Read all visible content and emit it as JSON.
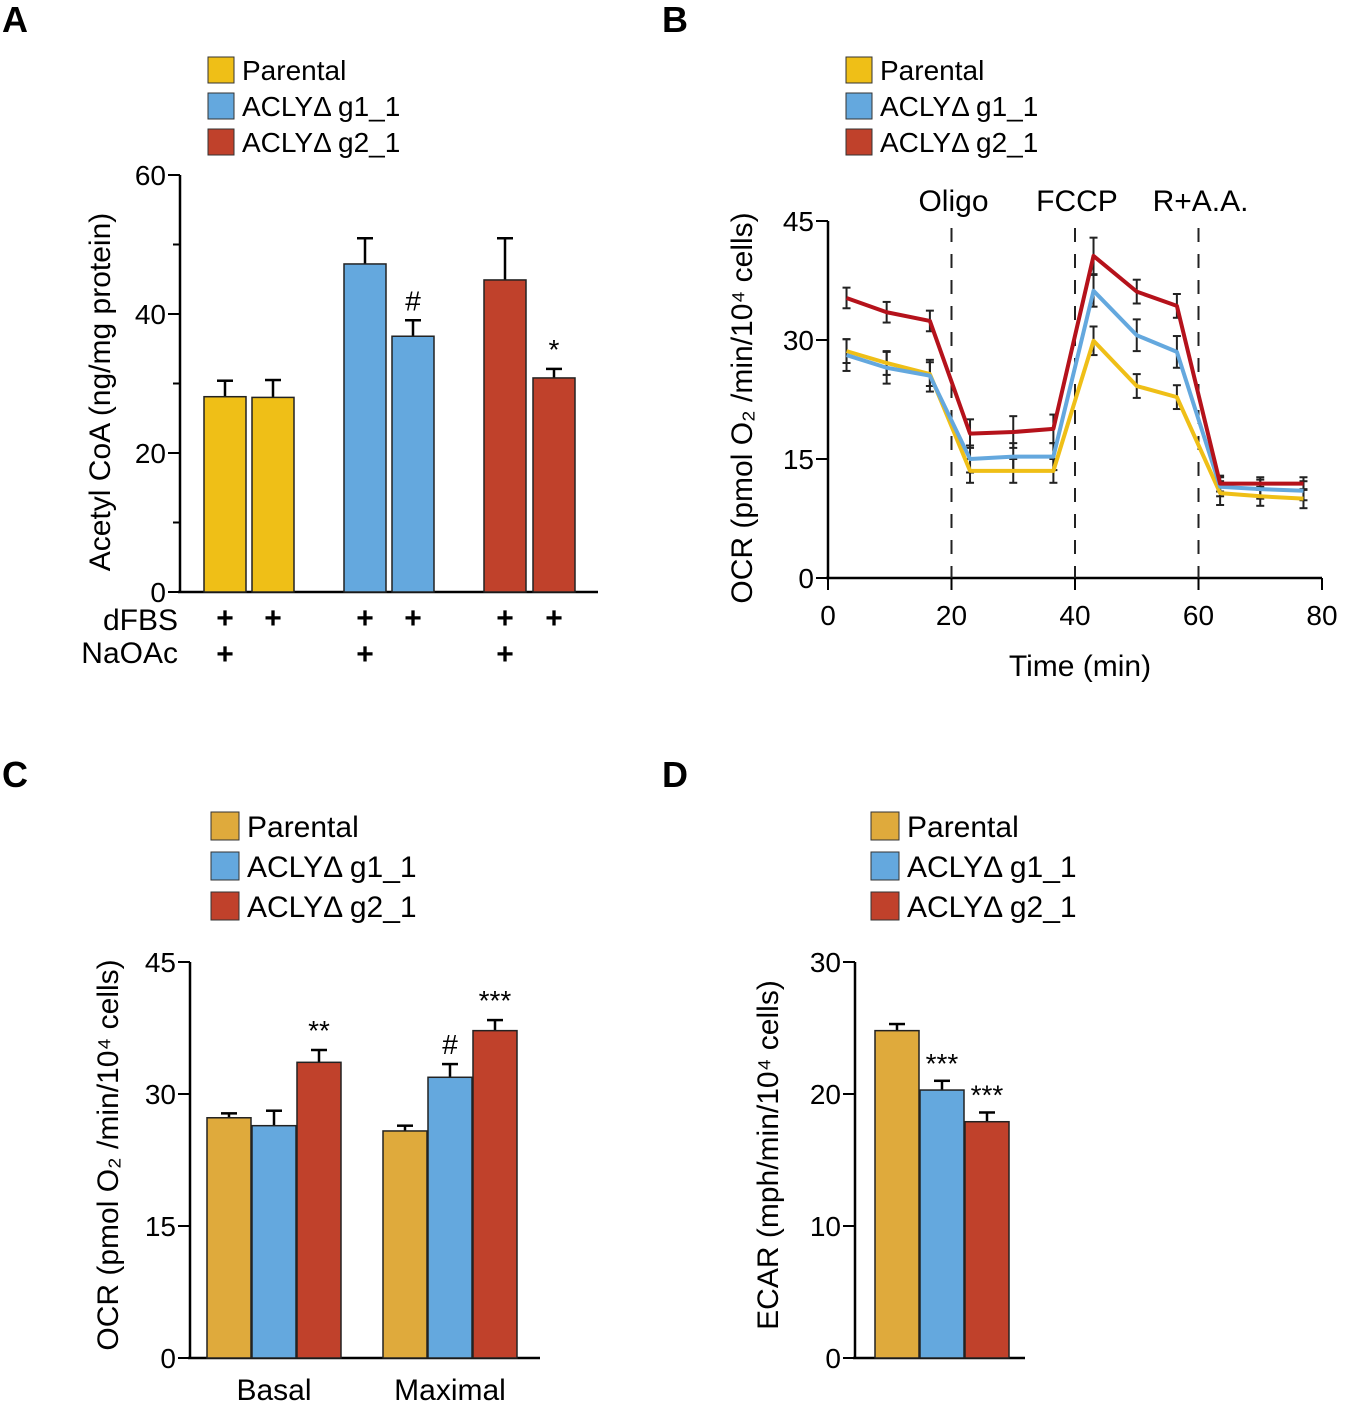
{
  "colors": {
    "parental": "#EFBF17",
    "parental_muted": "#DFAA3C",
    "g1": "#64A8DE",
    "g2": "#C0412B",
    "g2_line": "#B5121B",
    "axis": "#000000"
  },
  "chart_data": [
    {
      "panel": "A",
      "type": "bar",
      "legend": [
        "Parental",
        "ACLYΔ g1_1",
        "ACLYΔ g2_1"
      ],
      "legend_placement": "top-left",
      "ylabel": "Acetyl CoA (ng/mg protein)",
      "ylim": [
        0,
        60
      ],
      "yticks": [
        0,
        20,
        40,
        60
      ],
      "bars": [
        {
          "series": "Parental",
          "value": 28.1,
          "error": 2.3,
          "dFBS": true,
          "NaOAc": true,
          "annotation": ""
        },
        {
          "series": "Parental",
          "value": 28.0,
          "error": 2.5,
          "dFBS": true,
          "NaOAc": false,
          "annotation": ""
        },
        {
          "series": "ACLYΔ g1_1",
          "value": 47.2,
          "error": 3.7,
          "dFBS": true,
          "NaOAc": true,
          "annotation": ""
        },
        {
          "series": "ACLYΔ g1_1",
          "value": 36.8,
          "error": 2.3,
          "dFBS": true,
          "NaOAc": false,
          "annotation": "#"
        },
        {
          "series": "ACLYΔ g2_1",
          "value": 44.9,
          "error": 6.0,
          "dFBS": true,
          "NaOAc": true,
          "annotation": ""
        },
        {
          "series": "ACLYΔ g2_1",
          "value": 30.8,
          "error": 1.3,
          "dFBS": true,
          "NaOAc": false,
          "annotation": "*"
        }
      ],
      "condition_rows": [
        "dFBS",
        "NaOAc"
      ],
      "condition_mark": "+"
    },
    {
      "panel": "B",
      "type": "line",
      "legend": [
        "Parental",
        "ACLYΔ g1_1",
        "ACLYΔ g2_1"
      ],
      "legend_placement": "top-left",
      "xlabel": "Time (min)",
      "ylabel": "OCR (pmol O₂ /min/10⁴ cells)",
      "xlim": [
        0,
        80
      ],
      "xticks": [
        0,
        20,
        40,
        60,
        80
      ],
      "ylim": [
        0,
        45
      ],
      "yticks": [
        0,
        15,
        30,
        45
      ],
      "x": [
        3,
        9.5,
        16.5,
        23,
        30,
        36.5,
        43,
        50,
        56.5,
        63.5,
        70,
        77
      ],
      "series": [
        {
          "name": "Parental",
          "values": [
            28.6,
            27.1,
            25.7,
            13.5,
            13.5,
            13.5,
            29.9,
            24.2,
            22.8,
            10.7,
            10.3,
            10.0
          ],
          "errors": [
            1.5,
            1.5,
            1.5,
            1.5,
            1.5,
            1.5,
            1.8,
            1.5,
            1.5,
            1.5,
            1.2,
            1.2
          ]
        },
        {
          "name": "ACLYΔ g1_1",
          "values": [
            28.1,
            26.5,
            25.5,
            15.0,
            15.3,
            15.3,
            36.2,
            30.6,
            28.5,
            11.5,
            11.2,
            11.0
          ],
          "errors": [
            2.0,
            2.0,
            2.0,
            1.7,
            1.7,
            1.7,
            2.0,
            2.0,
            2.0,
            1.2,
            1.2,
            1.2
          ]
        },
        {
          "name": "ACLYΔ g2_1",
          "values": [
            35.3,
            33.5,
            32.4,
            18.2,
            18.4,
            18.8,
            40.6,
            36.1,
            34.3,
            11.9,
            11.9,
            11.9
          ],
          "errors": [
            1.3,
            1.3,
            1.3,
            1.8,
            2.0,
            1.8,
            2.3,
            1.5,
            1.5,
            1.0,
            0.8,
            0.8
          ]
        }
      ],
      "injections": [
        {
          "label": "Oligo",
          "x": 20
        },
        {
          "label": "FCCP",
          "x": 40
        },
        {
          "label": "R+A.A.",
          "x": 60
        }
      ]
    },
    {
      "panel": "C",
      "type": "bar",
      "legend": [
        "Parental",
        "ACLYΔ g1_1",
        "ACLYΔ g2_1"
      ],
      "legend_placement": "top-left",
      "ylabel": "OCR (pmol O₂ /min/10⁴ cells)",
      "ylim": [
        0,
        45
      ],
      "yticks": [
        0,
        15,
        30,
        45
      ],
      "categories": [
        "Basal",
        "Maximal"
      ],
      "series": [
        {
          "name": "Parental",
          "values": [
            27.3,
            25.8
          ],
          "errors": [
            0.5,
            0.6
          ],
          "annotations": [
            "",
            ""
          ]
        },
        {
          "name": "ACLYΔ g1_1",
          "values": [
            26.4,
            31.9
          ],
          "errors": [
            1.7,
            1.5
          ],
          "annotations": [
            "",
            "#"
          ]
        },
        {
          "name": "ACLYΔ g2_1",
          "values": [
            33.6,
            37.2
          ],
          "errors": [
            1.4,
            1.2
          ],
          "annotations": [
            "**",
            "***"
          ]
        }
      ]
    },
    {
      "panel": "D",
      "type": "bar",
      "legend": [
        "Parental",
        "ACLYΔ g1_1",
        "ACLYΔ g2_1"
      ],
      "legend_placement": "top-left",
      "ylabel": "ECAR (mph/min/10⁴ cells)",
      "ylim": [
        0,
        30
      ],
      "yticks": [
        0,
        10,
        20,
        30
      ],
      "series": [
        {
          "name": "Parental",
          "value": 24.8,
          "error": 0.5,
          "annotation": ""
        },
        {
          "name": "ACLYΔ g1_1",
          "value": 20.3,
          "error": 0.7,
          "annotation": "***"
        },
        {
          "name": "ACLYΔ g2_1",
          "value": 17.9,
          "error": 0.7,
          "annotation": "***"
        }
      ]
    }
  ]
}
